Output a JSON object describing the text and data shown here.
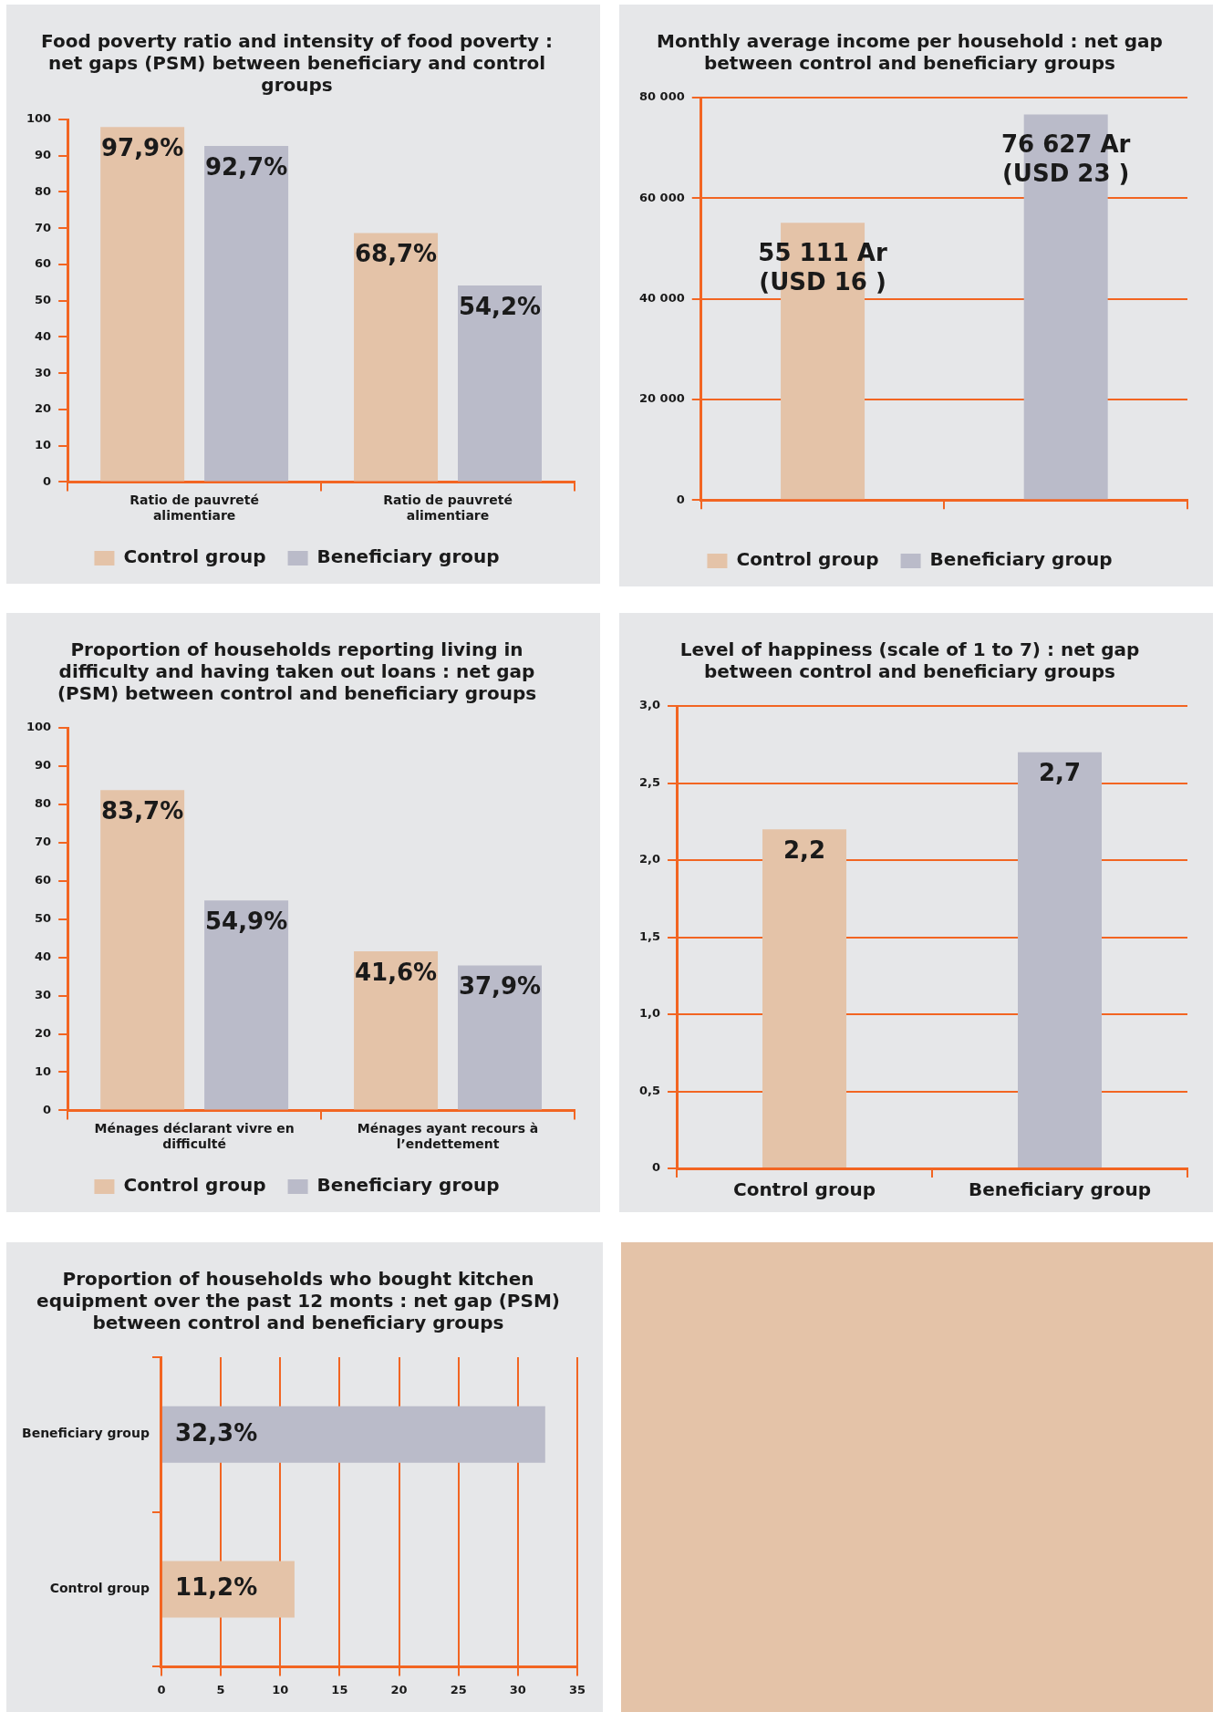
{
  "chart_data": [
    {
      "type": "bar",
      "title": "Food poverty ratio and intensity of food poverty : net gaps (PSM) between beneficiary and control groups",
      "categories": [
        "Ratio de pauvreté alimentiare",
        "Ratio de pauvreté alimentiare"
      ],
      "series": [
        {
          "name": "Control group",
          "color": "#e4c3a8",
          "values": [
            97.9,
            68.7
          ],
          "value_labels": [
            "97,9%",
            "68,7%"
          ]
        },
        {
          "name": "Beneficiary group",
          "color": "#babbc9",
          "values": [
            92.7,
            54.2
          ],
          "value_labels": [
            "92,7%",
            "54,2%"
          ]
        }
      ],
      "ylim": [
        0,
        100
      ],
      "yticks": [
        0,
        10,
        20,
        30,
        40,
        50,
        60,
        70,
        80,
        90,
        100
      ],
      "legend": "bottom"
    },
    {
      "type": "bar",
      "title": "Monthly average income per household : net gap between control and beneficiary groups",
      "categories": [
        null,
        null
      ],
      "series": [
        {
          "name": "Control group",
          "color": "#e4c3a8",
          "values": [
            55111,
            null
          ],
          "value_labels": [
            "55 111 Ar\n(USD 16 )",
            null
          ]
        },
        {
          "name": "Beneficiary group",
          "color": "#babbc9",
          "values": [
            null,
            76627
          ],
          "value_labels": [
            null,
            "76 627 Ar\n(USD 23 )"
          ]
        }
      ],
      "ylim": [
        0,
        80000
      ],
      "yticks": [
        0,
        {
          "value": 20000,
          "label": "20 000"
        },
        {
          "value": 40000,
          "label": "40 000"
        },
        {
          "value": 60000,
          "label": "60 000"
        },
        {
          "value": 80000,
          "label": "80 000"
        }
      ],
      "grid": "y",
      "legend": "bottom"
    },
    {
      "type": "bar",
      "title": "Proportion of households reporting living in difficulty and having taken out loans : net gap (PSM) between control and beneficiary groups",
      "categories": [
        "Ménages déclarant vivre en difficulté",
        "Ménages ayant recours à l’endettement"
      ],
      "series": [
        {
          "name": "Control group",
          "color": "#e4c3a8",
          "values": [
            83.7,
            41.6
          ],
          "value_labels": [
            "83,7%",
            "41,6%"
          ]
        },
        {
          "name": "Beneficiary group",
          "color": "#babbc9",
          "values": [
            54.9,
            37.9
          ],
          "value_labels": [
            "54,9%",
            "37,9%"
          ]
        }
      ],
      "ylim": [
        0,
        100
      ],
      "yticks": [
        0,
        10,
        20,
        30,
        40,
        50,
        60,
        70,
        80,
        90,
        100
      ],
      "legend": "bottom"
    },
    {
      "type": "bar",
      "title": "Level of happiness (scale of 1 to 7) : net gap between control and beneficiary groups",
      "categories": [
        "Control group",
        "Beneficiary group"
      ],
      "values": [
        2.2,
        2.7
      ],
      "colors": [
        "#e4c3a8",
        "#babbc9"
      ],
      "value_labels": [
        "2,2",
        "2,7"
      ],
      "ylim": [
        0,
        3
      ],
      "yticks": [
        0,
        {
          "value": 0.5,
          "label": "0,5"
        },
        {
          "value": 1,
          "label": "1,0"
        },
        {
          "value": 1.5,
          "label": "1,5"
        },
        {
          "value": 2,
          "label": "2,0"
        },
        {
          "value": 2.5,
          "label": "2,5"
        },
        {
          "value": 3,
          "label": "3,0"
        }
      ],
      "grid": "y"
    },
    {
      "type": "bar",
      "orientation": "horizontal",
      "title": "Proportion of households who bought kitchen equipment over the past 12 monts : net gap (PSM) between control and beneficiary groups",
      "categories": [
        "Beneficiary group",
        "Control group"
      ],
      "values": [
        32.3,
        11.2
      ],
      "colors": [
        "#babbc9",
        "#e4c3a8"
      ],
      "value_labels": [
        "32,3%",
        "11,2%"
      ],
      "xlim": [
        0,
        35
      ],
      "xticks": [
        0,
        5,
        10,
        15,
        20,
        25,
        30,
        35
      ],
      "grid": "x"
    }
  ]
}
